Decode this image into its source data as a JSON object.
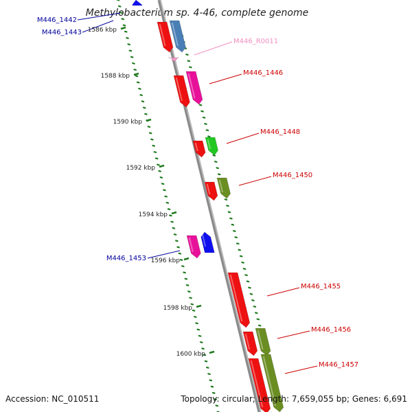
{
  "title": "Methylobacterium sp. 4-46, complete genome",
  "footer": {
    "accession": "Accession: NC_010511",
    "info": "Topology: circular; Length: 7,659,055 bp; Genes: 6,691"
  },
  "colors": {
    "forward_label": "#cc0000",
    "reverse_label": "#00009c",
    "rna_label": "#ef8fc0",
    "backbone": "#8a8a8a",
    "tick": "#1f7a1f"
  },
  "ticks": [
    {
      "label": "1586 kbp"
    },
    {
      "label": "1588 kbp"
    },
    {
      "label": "1590 kbp"
    },
    {
      "label": "1592 kbp"
    },
    {
      "label": "1594 kbp"
    },
    {
      "label": "1596 kbp"
    },
    {
      "label": "1598 kbp"
    },
    {
      "label": "1600 kbp"
    }
  ],
  "labels": [
    {
      "text": "M446_1442",
      "strand": "reverse"
    },
    {
      "text": "M446_1443",
      "strand": "reverse"
    },
    {
      "text": "M446_R0011",
      "strand": "rna"
    },
    {
      "text": "M446_1446",
      "strand": "forward"
    },
    {
      "text": "M446_1448",
      "strand": "forward"
    },
    {
      "text": "M446_1450",
      "strand": "forward"
    },
    {
      "text": "M446_1453",
      "strand": "reverse"
    },
    {
      "text": "M446_1455",
      "strand": "forward"
    },
    {
      "text": "M446_1456",
      "strand": "forward"
    },
    {
      "text": "M446_1457",
      "strand": "forward"
    }
  ],
  "genes": [
    {
      "color": "#ee1111"
    },
    {
      "color": "#4a7fb5"
    },
    {
      "color": "#ee1111"
    },
    {
      "color": "#e8119a"
    },
    {
      "color": "#ee1111"
    },
    {
      "color": "#22c722"
    },
    {
      "color": "#ee1111"
    },
    {
      "color": "#6b8e23"
    },
    {
      "color": "#e8119a"
    },
    {
      "color": "#1010ee"
    },
    {
      "color": "#ee1111"
    },
    {
      "color": "#ee1111"
    },
    {
      "color": "#6b8e23"
    },
    {
      "color": "#ee1111"
    },
    {
      "color": "#6b8e23"
    },
    {
      "color": "#1010ee"
    },
    {
      "color": "#f29ac9"
    }
  ]
}
